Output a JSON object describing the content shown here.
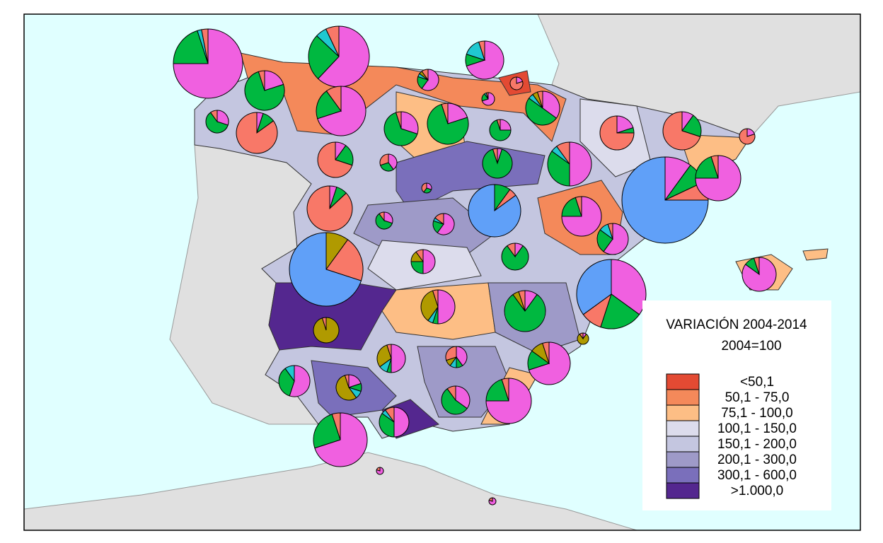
{
  "legend": {
    "title": "VARIACIÓN 2004-2014",
    "subtitle": "2004=100",
    "items": [
      {
        "label": "<50,1",
        "color": "#e34a33"
      },
      {
        "label": "50,1 - 75,0",
        "color": "#f4895a"
      },
      {
        "label": "75,1 - 100,0",
        "color": "#fdbe85"
      },
      {
        "label": "100,1 - 150,0",
        "color": "#dcdcec"
      },
      {
        "label": "150,1 - 200,0",
        "color": "#c4c6e0"
      },
      {
        "label": "200,1 - 300,0",
        "color": "#9e9ac8"
      },
      {
        "label": "300,1 - 600,0",
        "color": "#7a6fbb"
      },
      {
        "label": ">1.000,0",
        "color": "#54278f"
      }
    ]
  },
  "pies": {
    "colors": [
      "#f060e0",
      "#00b840",
      "#20c8d0",
      "#b09a00",
      "#f87868",
      "#60a0f8"
    ],
    "slices": [
      [
        75,
        20,
        2,
        0,
        3,
        0
      ],
      [
        62,
        25,
        6,
        0,
        7,
        0
      ],
      [
        70,
        10,
        15,
        0,
        5,
        0
      ],
      [
        20,
        75,
        0,
        0,
        5,
        0
      ],
      [
        60,
        20,
        5,
        5,
        10,
        0
      ],
      [
        20,
        0,
        0,
        0,
        80,
        0
      ],
      [
        70,
        20,
        5,
        0,
        5,
        0
      ],
      [
        70,
        20,
        0,
        0,
        10,
        0
      ],
      [
        30,
        60,
        0,
        0,
        10,
        0
      ],
      [
        5,
        10,
        0,
        0,
        85,
        0
      ],
      [
        30,
        65,
        0,
        0,
        5,
        0
      ],
      [
        20,
        75,
        0,
        0,
        5,
        0
      ],
      [
        25,
        70,
        0,
        0,
        5,
        0
      ],
      [
        35,
        50,
        5,
        5,
        5,
        0
      ],
      [
        20,
        5,
        0,
        0,
        75,
        0
      ],
      [
        10,
        20,
        0,
        0,
        70,
        0
      ],
      [
        20,
        0,
        0,
        0,
        80,
        0
      ],
      [
        10,
        20,
        0,
        0,
        70,
        0
      ],
      [
        40,
        30,
        0,
        0,
        30,
        0
      ],
      [
        5,
        90,
        0,
        0,
        5,
        0
      ],
      [
        50,
        35,
        5,
        0,
        10,
        0
      ],
      [
        10,
        8,
        0,
        0,
        7,
        75
      ],
      [
        75,
        20,
        0,
        0,
        5,
        0
      ],
      [
        30,
        30,
        0,
        0,
        40,
        0
      ],
      [
        5,
        8,
        0,
        0,
        87,
        0
      ],
      [
        30,
        60,
        0,
        0,
        10,
        0
      ],
      [
        60,
        20,
        5,
        0,
        15,
        0
      ],
      [
        0,
        10,
        0,
        0,
        5,
        85
      ],
      [
        75,
        20,
        0,
        0,
        5,
        0
      ],
      [
        60,
        25,
        10,
        0,
        5,
        0
      ],
      [
        0,
        0,
        0,
        10,
        20,
        70
      ],
      [
        50,
        25,
        0,
        15,
        10,
        0
      ],
      [
        10,
        80,
        0,
        0,
        10,
        0
      ],
      [
        85,
        10,
        0,
        0,
        5,
        0
      ],
      [
        35,
        20,
        0,
        0,
        10,
        35
      ],
      [
        50,
        5,
        5,
        35,
        5,
        0
      ],
      [
        10,
        80,
        0,
        5,
        5,
        0
      ],
      [
        0,
        0,
        0,
        95,
        5,
        0
      ],
      [
        10,
        0,
        0,
        80,
        10,
        0
      ],
      [
        50,
        5,
        10,
        30,
        5,
        0
      ],
      [
        40,
        10,
        10,
        10,
        30,
        0
      ],
      [
        70,
        15,
        0,
        10,
        5,
        0
      ],
      [
        55,
        35,
        10,
        0,
        0,
        0
      ],
      [
        20,
        10,
        10,
        55,
        5,
        0
      ],
      [
        35,
        55,
        0,
        0,
        10,
        0
      ],
      [
        75,
        20,
        0,
        0,
        5,
        0
      ],
      [
        50,
        35,
        5,
        0,
        10,
        0
      ],
      [
        70,
        25,
        0,
        0,
        5,
        0
      ],
      [
        80,
        0,
        0,
        0,
        20,
        0
      ],
      [
        80,
        0,
        0,
        0,
        20,
        0
      ]
    ]
  }
}
